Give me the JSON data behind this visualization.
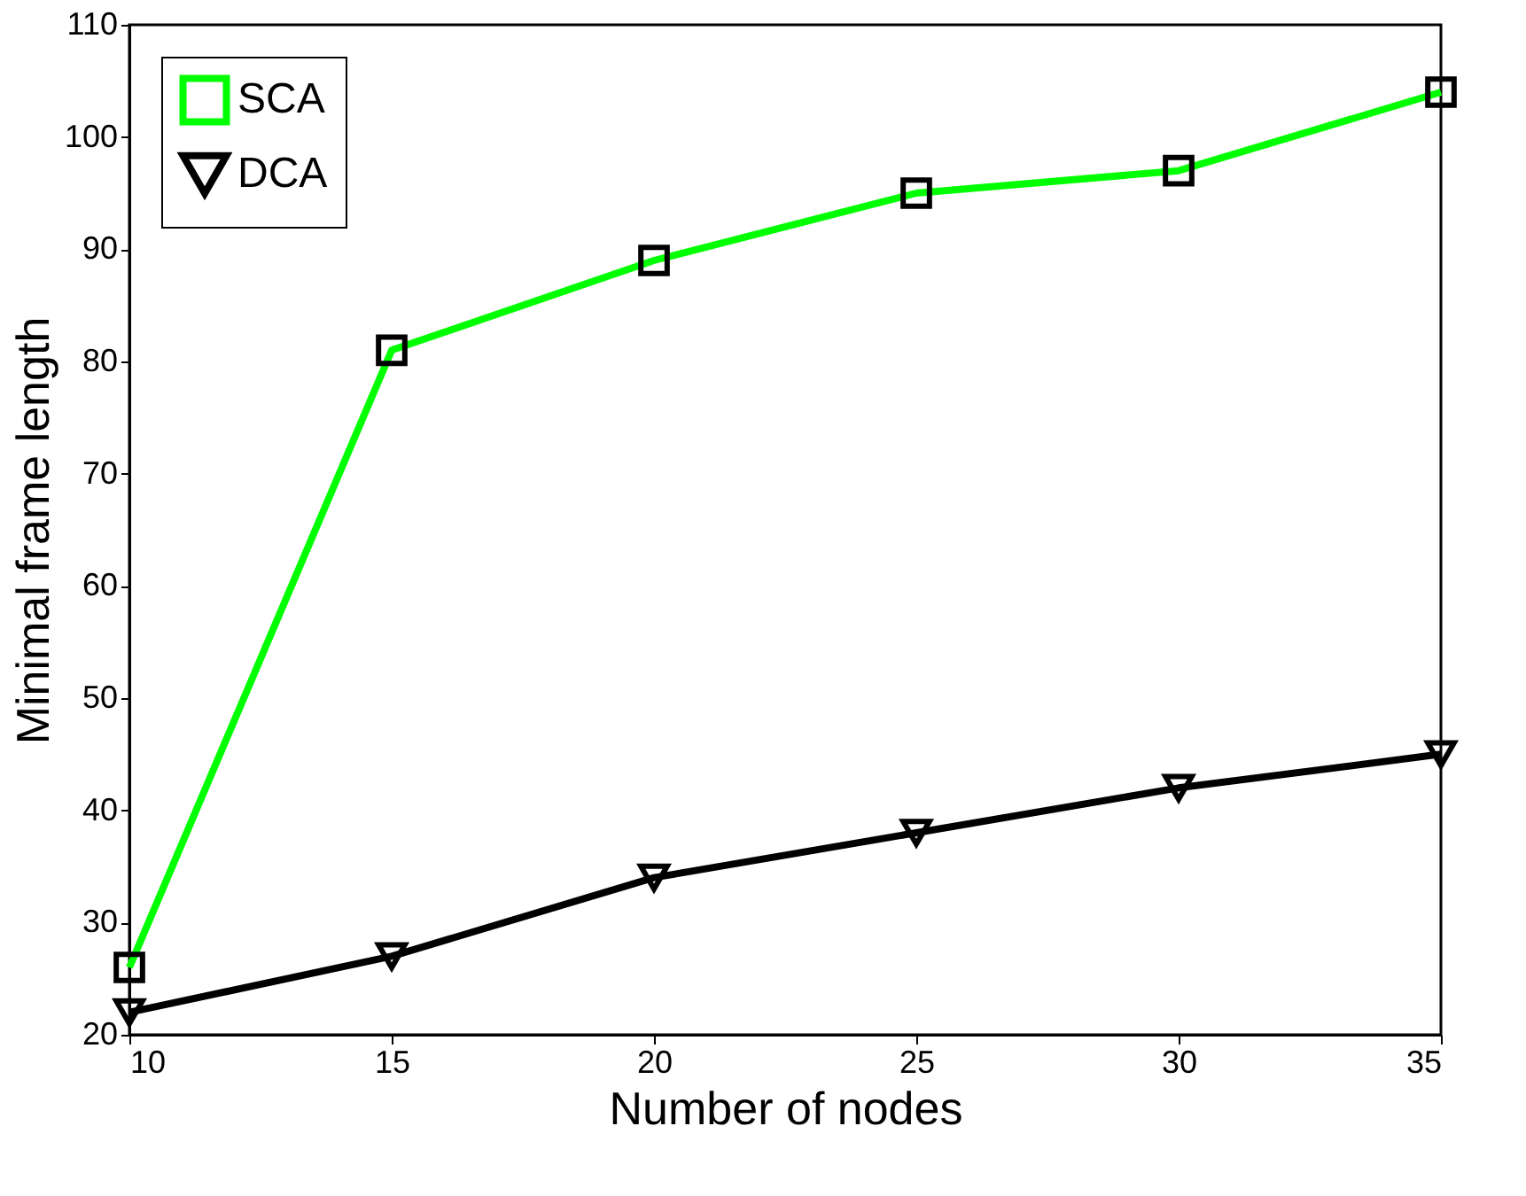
{
  "chart_data": {
    "type": "line",
    "xlabel": "Number of nodes",
    "ylabel": "Minimal frame length",
    "x": [
      10,
      15,
      20,
      25,
      30,
      35
    ],
    "series": [
      {
        "name": "SCA",
        "color": "#00ff00",
        "marker": "square",
        "values": [
          26,
          81,
          89,
          95,
          97,
          104
        ]
      },
      {
        "name": "DCA",
        "color": "#000000",
        "marker": "triangle",
        "values": [
          22,
          27,
          34,
          38,
          42,
          45
        ]
      }
    ],
    "xlim": [
      10,
      35
    ],
    "xticks": [
      10,
      15,
      20,
      25,
      30,
      35
    ],
    "ylim": [
      20,
      110
    ],
    "yticks": [
      20,
      30,
      40,
      50,
      60,
      70,
      80,
      90,
      100,
      110
    ],
    "grid": false,
    "legend": "top left",
    "line_style": "solid"
  }
}
